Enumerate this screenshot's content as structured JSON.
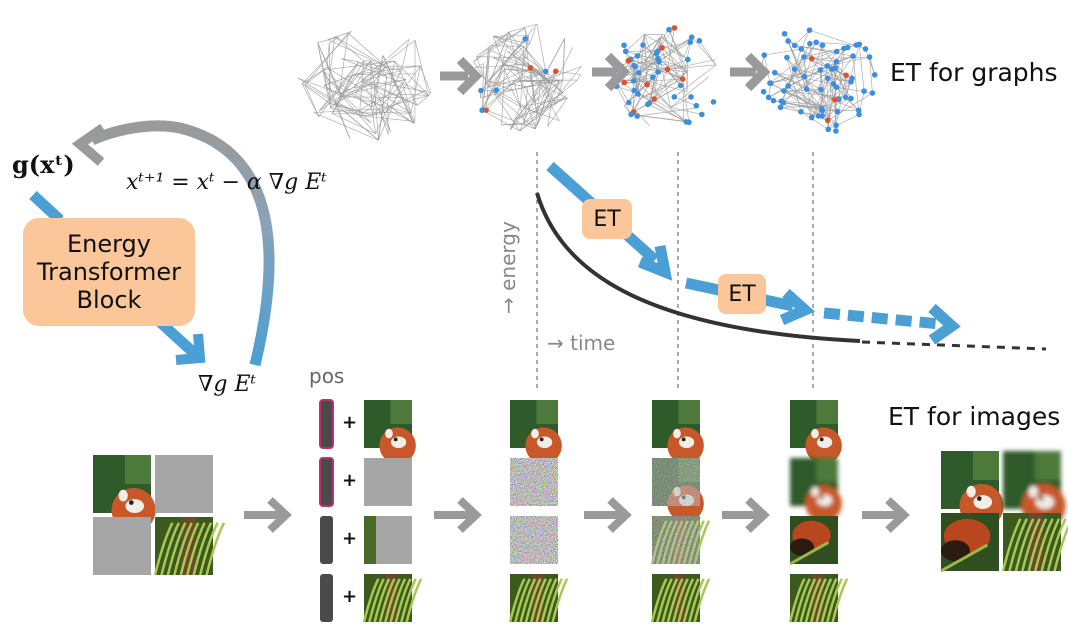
{
  "labels": {
    "graphs": "ET for graphs",
    "images": "ET for images",
    "pos": "pos",
    "energy_axis": "→ energy",
    "time_axis": "→ time",
    "et_badge": "ET",
    "block_line1": "Energy",
    "block_line2": "Transformer",
    "block_line3": "Block",
    "gx": "g(xᵗ)",
    "update_eq": "xᵗ⁺¹ = xᵗ − α ∇g Eᵗ",
    "grad_e": "∇g Eᵗ",
    "plus": "+"
  },
  "colors": {
    "blue_arrow": "#4a9fd4",
    "gray_arrow": "#a0a0a0",
    "orange_box": "#fbc79a",
    "energy_curve": "#333333",
    "node_blue": "#3d8fdc",
    "node_red": "#e0502a",
    "graph_edge": "#9a9a9a"
  },
  "graph_stages": [
    {
      "blue_fraction": 0.0,
      "red_fraction": 0.0
    },
    {
      "blue_fraction": 0.12,
      "red_fraction": 0.05
    },
    {
      "blue_fraction": 0.55,
      "red_fraction": 0.1
    },
    {
      "blue_fraction": 0.9,
      "red_fraction": 0.08
    }
  ],
  "pos_token_states": [
    "masked",
    "masked",
    "plain",
    "plain"
  ]
}
